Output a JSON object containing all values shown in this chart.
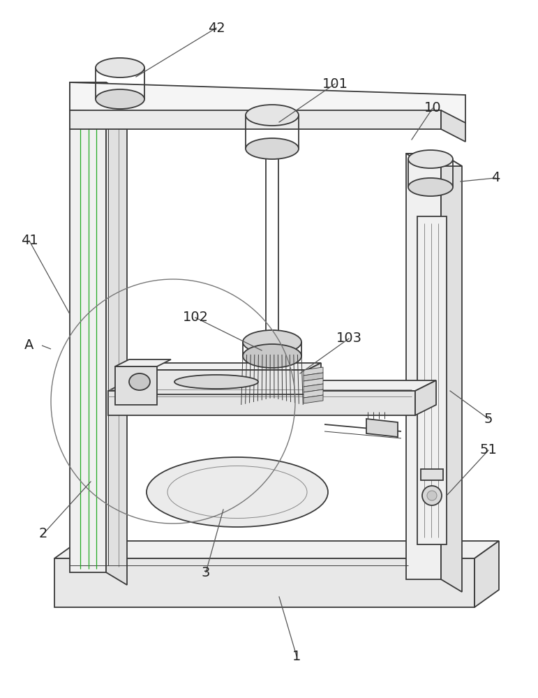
{
  "background_color": "#ffffff",
  "line_color": "#3a3a3a",
  "line_color_light": "#888888",
  "line_color_green": "#00aa00",
  "label_color": "#222222",
  "lw": 1.3,
  "lw_t": 0.7,
  "lw_green": 0.8
}
